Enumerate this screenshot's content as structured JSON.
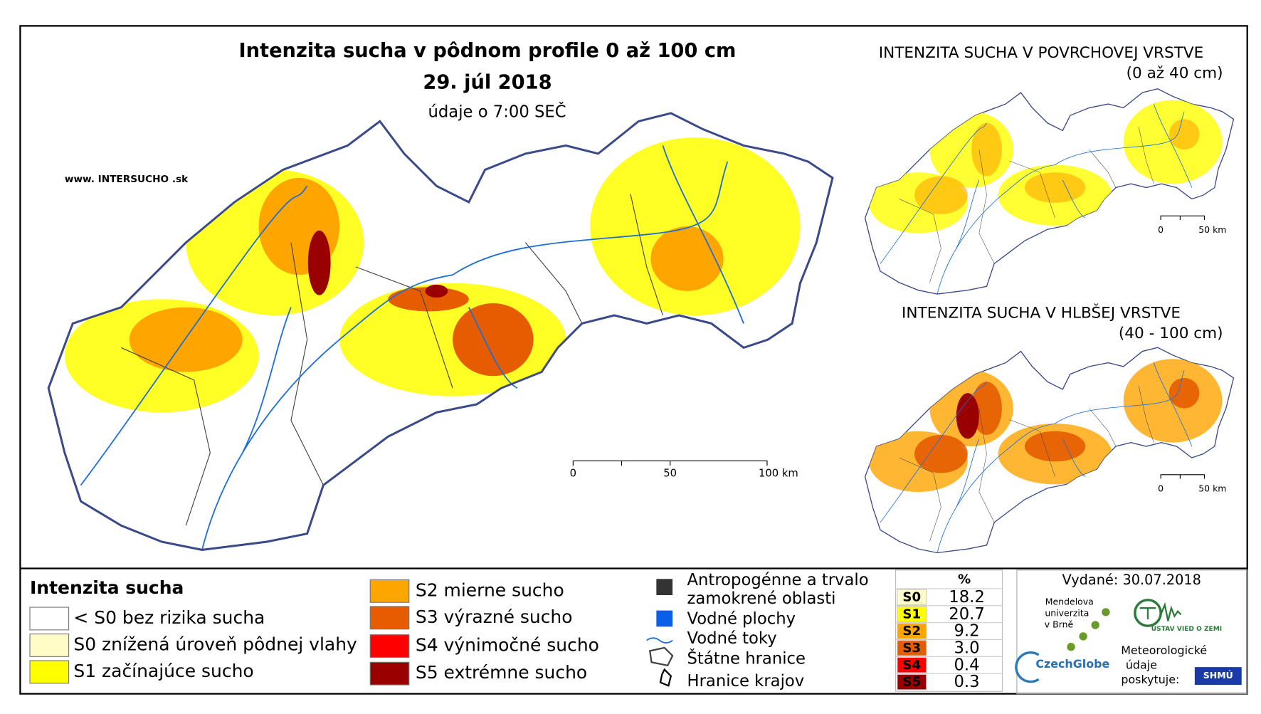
{
  "main_map": {
    "title": "Intenzita sucha v pôdnom profile 0 až 100 cm",
    "date": "29. júl 2018",
    "note": "údaje o 7:00 SEČ",
    "website": "www. INTERSUCHO .sk",
    "scale": [
      "0",
      "50",
      "100 km"
    ]
  },
  "inset_maps": [
    {
      "title": "INTENZITA SUCHA V POVRCHOVEJ VRSTVE",
      "subtitle": "(0 až 40 cm)",
      "scale": [
        "0",
        "50 km"
      ]
    },
    {
      "title": "INTENZITA SUCHA V HLBŠEJ VRSTVE",
      "subtitle": "(40 - 100 cm)",
      "scale": [
        "0",
        "50 km"
      ]
    }
  ],
  "legend": {
    "title": "Intenzita sucha",
    "classes": [
      {
        "label": "< S0 bez rizika sucha",
        "color": "#ffffff"
      },
      {
        "label": "S0 znížená úroveň pôdnej vlahy",
        "color": "#fffcc8"
      },
      {
        "label": "S1 začínajúce sucho",
        "color": "#ffff00"
      },
      {
        "label": "S2 mierne sucho",
        "color": "#ffa500"
      },
      {
        "label": "S3 výrazné sucho",
        "color": "#e65c00"
      },
      {
        "label": "S4 výnimočné sucho",
        "color": "#ff0000"
      },
      {
        "label": "S5 extrémne sucho",
        "color": "#990000"
      }
    ]
  },
  "symbols": [
    "Antropogénne a trvalo",
    "zamokrené oblasti",
    "Vodné plochy",
    "Vodné toky",
    "Štátne hranice",
    "Hranice krajov"
  ],
  "stats": {
    "header": "%",
    "rows": [
      {
        "class": "S0",
        "percent": "18.2",
        "color": "#fffcc8"
      },
      {
        "class": "S1",
        "percent": "20.7",
        "color": "#ffff00"
      },
      {
        "class": "S2",
        "percent": "9.2",
        "color": "#ffa500"
      },
      {
        "class": "S3",
        "percent": "3.0",
        "color": "#e65c00"
      },
      {
        "class": "S4",
        "percent": "0.4",
        "color": "#ff0000"
      },
      {
        "class": "S5",
        "percent": "0.3",
        "color": "#990000"
      }
    ]
  },
  "footer": {
    "issued": "Vydané: 30.07.2018",
    "mendel": [
      "Mendelova",
      "univerzita",
      "v Brně"
    ],
    "czechglobe": "CzechGlobe",
    "ustav": "ÚSTAV VIED O ZEMI",
    "meteo": [
      "Meteorologické",
      "údaje",
      "poskytuje:"
    ],
    "shmu": "SHMÚ"
  }
}
